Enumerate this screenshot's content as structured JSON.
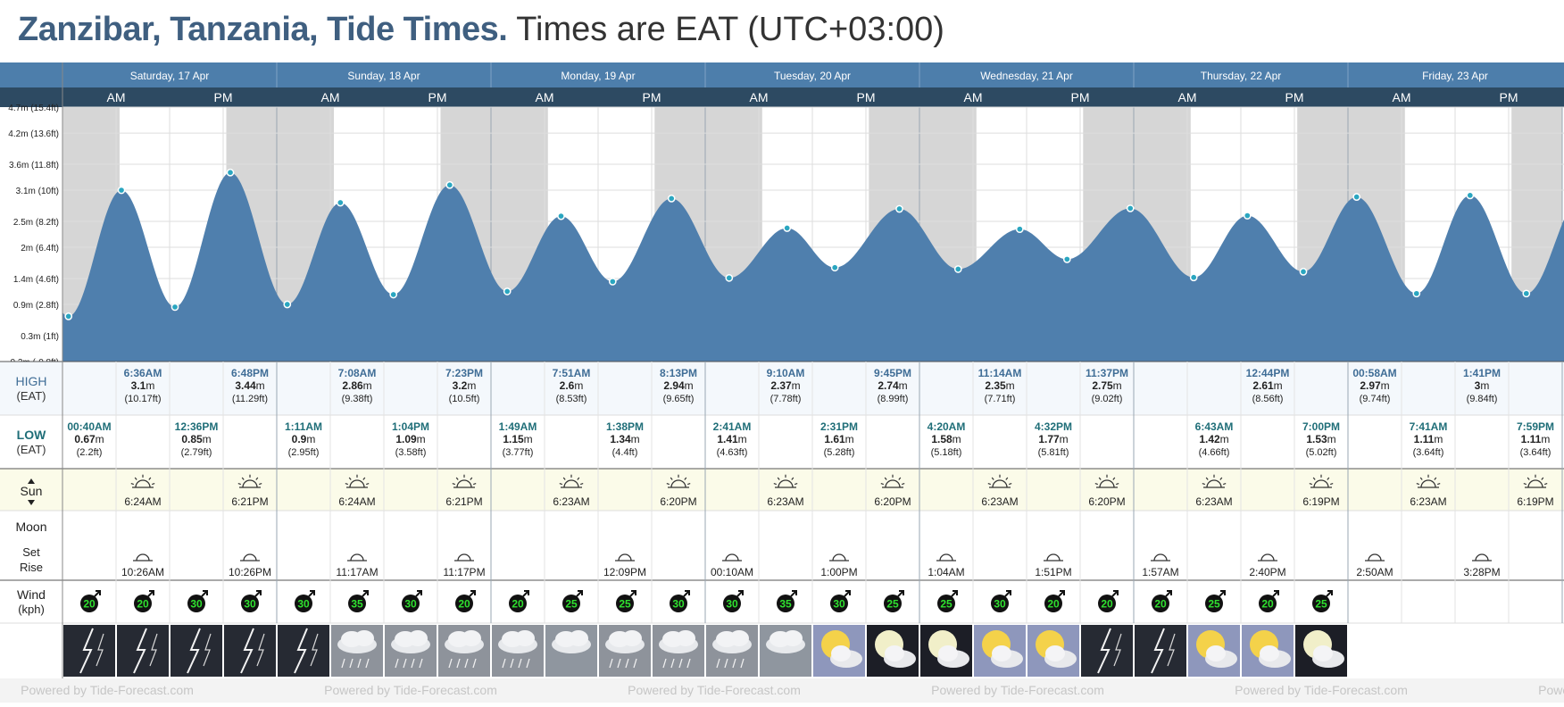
{
  "header": {
    "location": "Zanzibar, Tanzania, Tide Times.",
    "timezone_note": "Times are EAT (UTC+03:00)"
  },
  "days": [
    "Saturday, 17 Apr",
    "Sunday, 18 Apr",
    "Monday, 19 Apr",
    "Tuesday, 20 Apr",
    "Wednesday, 21 Apr",
    "Thursday, 22 Apr",
    "Friday, 23 Apr"
  ],
  "halves": [
    "AM",
    "PM"
  ],
  "row_labels": {
    "high": "HIGH",
    "high_sub": "(EAT)",
    "low": "LOW",
    "low_sub": "(EAT)",
    "sun": "Sun",
    "moon": "Moon",
    "moon_set": "Set",
    "moon_rise": "Rise",
    "wind": "Wind",
    "wind_sub": "(kph)"
  },
  "chart_data": {
    "type": "area",
    "title": "",
    "xlabel": "",
    "ylabel": "",
    "x_unit": "hours since Saturday 17 Apr 00:00 EAT",
    "ylim": [
      -0.2,
      4.7
    ],
    "y_ticks": [
      {
        "value": 4.7,
        "label": "4.7m (15.4ft)"
      },
      {
        "value": 4.2,
        "label": "4.2m (13.6ft)"
      },
      {
        "value": 3.6,
        "label": "3.6m (11.8ft)"
      },
      {
        "value": 3.1,
        "label": "3.1m (10ft)"
      },
      {
        "value": 2.5,
        "label": "2.5m (8.2ft)"
      },
      {
        "value": 2.0,
        "label": "2m (6.4ft)"
      },
      {
        "value": 1.4,
        "label": "1.4m (4.6ft)"
      },
      {
        "value": 0.9,
        "label": "0.9m (2.8ft)"
      },
      {
        "value": 0.3,
        "label": "0.3m (1ft)"
      },
      {
        "value": -0.2,
        "label": "-0.2m (-0.8ft)"
      }
    ],
    "grid": true,
    "tides": [
      {
        "type": "low",
        "time": "00:40AM",
        "h": 0.67,
        "m": "0.67",
        "ft": "(2.2ft)",
        "t": 0.67
      },
      {
        "type": "high",
        "time": "6:36AM",
        "h": 3.1,
        "m": "3.1",
        "ft": "(10.17ft)",
        "t": 6.6
      },
      {
        "type": "low",
        "time": "12:36PM",
        "h": 0.85,
        "m": "0.85",
        "ft": "(2.79ft)",
        "t": 12.6
      },
      {
        "type": "high",
        "time": "6:48PM",
        "h": 3.44,
        "m": "3.44",
        "ft": "(11.29ft)",
        "t": 18.8
      },
      {
        "type": "low",
        "time": "1:11AM",
        "h": 0.9,
        "m": "0.9",
        "ft": "(2.95ft)",
        "t": 25.18
      },
      {
        "type": "high",
        "time": "7:08AM",
        "h": 2.86,
        "m": "2.86",
        "ft": "(9.38ft)",
        "t": 31.13
      },
      {
        "type": "low",
        "time": "1:04PM",
        "h": 1.09,
        "m": "1.09",
        "ft": "(3.58ft)",
        "t": 37.07
      },
      {
        "type": "high",
        "time": "7:23PM",
        "h": 3.2,
        "m": "3.2",
        "ft": "(10.5ft)",
        "t": 43.38
      },
      {
        "type": "low",
        "time": "1:49AM",
        "h": 1.15,
        "m": "1.15",
        "ft": "(3.77ft)",
        "t": 49.82
      },
      {
        "type": "high",
        "time": "7:51AM",
        "h": 2.6,
        "m": "2.6",
        "ft": "(8.53ft)",
        "t": 55.85
      },
      {
        "type": "low",
        "time": "1:38PM",
        "h": 1.34,
        "m": "1.34",
        "ft": "(4.4ft)",
        "t": 61.63
      },
      {
        "type": "high",
        "time": "8:13PM",
        "h": 2.94,
        "m": "2.94",
        "ft": "(9.65ft)",
        "t": 68.22
      },
      {
        "type": "low",
        "time": "2:41AM",
        "h": 1.41,
        "m": "1.41",
        "ft": "(4.63ft)",
        "t": 74.68
      },
      {
        "type": "high",
        "time": "9:10AM",
        "h": 2.37,
        "m": "2.37",
        "ft": "(7.78ft)",
        "t": 81.17
      },
      {
        "type": "low",
        "time": "2:31PM",
        "h": 1.61,
        "m": "1.61",
        "ft": "(5.28ft)",
        "t": 86.52
      },
      {
        "type": "high",
        "time": "9:45PM",
        "h": 2.74,
        "m": "2.74",
        "ft": "(8.99ft)",
        "t": 93.75
      },
      {
        "type": "low",
        "time": "4:20AM",
        "h": 1.58,
        "m": "1.58",
        "ft": "(5.18ft)",
        "t": 100.33
      },
      {
        "type": "high",
        "time": "11:14AM",
        "h": 2.35,
        "m": "2.35",
        "ft": "(7.71ft)",
        "t": 107.23
      },
      {
        "type": "low",
        "time": "4:32PM",
        "h": 1.77,
        "m": "1.77",
        "ft": "(5.81ft)",
        "t": 112.53
      },
      {
        "type": "high",
        "time": "11:37PM",
        "h": 2.75,
        "m": "2.75",
        "ft": "(9.02ft)",
        "t": 119.62
      },
      {
        "type": "low",
        "time": "6:43AM",
        "h": 1.42,
        "m": "1.42",
        "ft": "(4.66ft)",
        "t": 126.72
      },
      {
        "type": "high",
        "time": "12:44PM",
        "h": 2.61,
        "m": "2.61",
        "ft": "(8.56ft)",
        "t": 132.73
      },
      {
        "type": "low",
        "time": "7:00PM",
        "h": 1.53,
        "m": "1.53",
        "ft": "(5.02ft)",
        "t": 139.0
      },
      {
        "type": "high",
        "time": "00:58AM",
        "h": 2.97,
        "m": "2.97",
        "ft": "(9.74ft)",
        "t": 144.97
      },
      {
        "type": "low",
        "time": "7:41AM",
        "h": 1.11,
        "m": "1.11",
        "ft": "(3.64ft)",
        "t": 151.68
      },
      {
        "type": "high",
        "time": "1:41PM",
        "h": 3.0,
        "m": "3",
        "ft": "(9.84ft)",
        "t": 157.68
      },
      {
        "type": "low",
        "time": "7:59PM",
        "h": 1.11,
        "m": "1.11",
        "ft": "(3.64ft)",
        "t": 163.98
      }
    ],
    "night_shading": [
      {
        "from": 0,
        "to": 6.4
      },
      {
        "from": 18.35,
        "to": 30.4
      },
      {
        "from": 42.35,
        "to": 54.38
      },
      {
        "from": 66.33,
        "to": 78.38
      },
      {
        "from": 90.33,
        "to": 102.38
      },
      {
        "from": 114.33,
        "to": 126.38
      },
      {
        "from": 138.32,
        "to": 150.38
      },
      {
        "from": 162.32,
        "to": 168
      }
    ]
  },
  "sun": [
    {
      "rise": "6:24AM",
      "set": "6:21PM"
    },
    {
      "rise": "6:24AM",
      "set": "6:21PM"
    },
    {
      "rise": "6:23AM",
      "set": "6:20PM"
    },
    {
      "rise": "6:23AM",
      "set": "6:20PM"
    },
    {
      "rise": "6:23AM",
      "set": "6:20PM"
    },
    {
      "rise": "6:23AM",
      "set": "6:19PM"
    },
    {
      "rise": "6:23AM",
      "set": "6:19PM"
    }
  ],
  "moon": [
    {
      "slot": 1,
      "time": "10:26AM"
    },
    {
      "slot": 3,
      "time": "10:26PM"
    },
    {
      "slot": 5,
      "time": "11:17AM"
    },
    {
      "slot": 7,
      "time": "11:17PM"
    },
    {
      "slot": 10,
      "time": "12:09PM"
    },
    {
      "slot": 12,
      "time": "00:10AM"
    },
    {
      "slot": 14,
      "time": "1:00PM"
    },
    {
      "slot": 16,
      "time": "1:04AM"
    },
    {
      "slot": 18,
      "time": "1:51PM"
    },
    {
      "slot": 20,
      "time": "1:57AM"
    },
    {
      "slot": 22,
      "time": "2:40PM"
    },
    {
      "slot": 24,
      "time": "2:50AM"
    },
    {
      "slot": 26,
      "time": "3:28PM"
    }
  ],
  "wind": [
    20,
    20,
    30,
    30,
    30,
    35,
    30,
    20,
    20,
    25,
    25,
    30,
    30,
    35,
    30,
    25,
    25,
    30,
    20,
    20,
    20,
    25,
    20,
    25
  ],
  "weather": [
    "storm",
    "storm",
    "storm",
    "storm",
    "storm",
    "rain",
    "rain",
    "rain",
    "rain",
    "cloud",
    "rain",
    "rain",
    "rain",
    "cloud",
    "partly-sunny",
    "partly-moon",
    "partly-moon",
    "partly-sunny",
    "partly-sunny",
    "storm",
    "storm",
    "partly-sunny",
    "partly-sunny",
    "partly-moon"
  ],
  "colors": {
    "header_band": "#4d7eab",
    "ampm_band": "#2d4a62",
    "tide_fill": "#4f7fad",
    "night": "#d6d6d6",
    "high_label": "#3f6d96",
    "low_label": "#1f6e78",
    "sun_bg": "#fbfbe9",
    "wind_badge": "#168a16"
  },
  "footer": {
    "watermark": "Powered by Tide-Forecast.com"
  }
}
